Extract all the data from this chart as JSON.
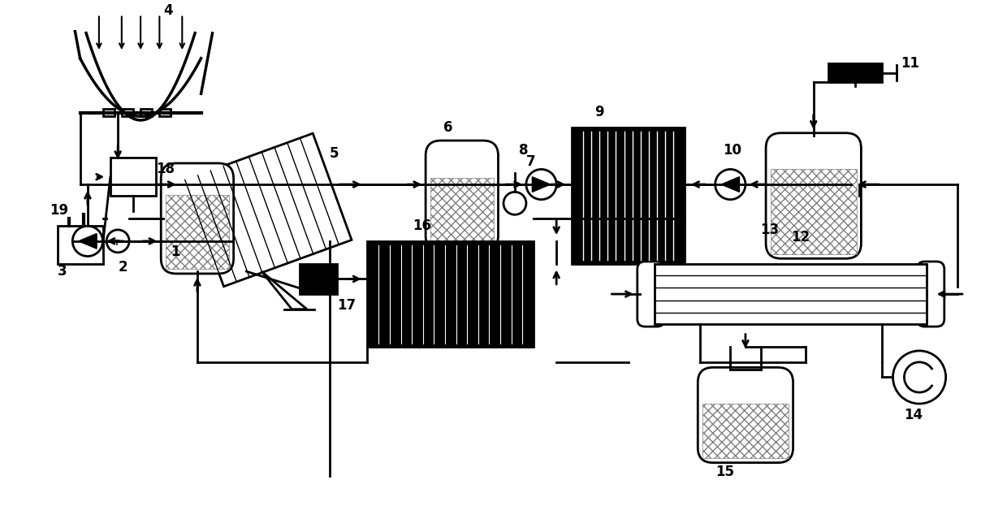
{
  "bg_color": "#ffffff",
  "line_color": "#000000",
  "lw": 2.0,
  "fig_width": 12.4,
  "fig_height": 6.39
}
